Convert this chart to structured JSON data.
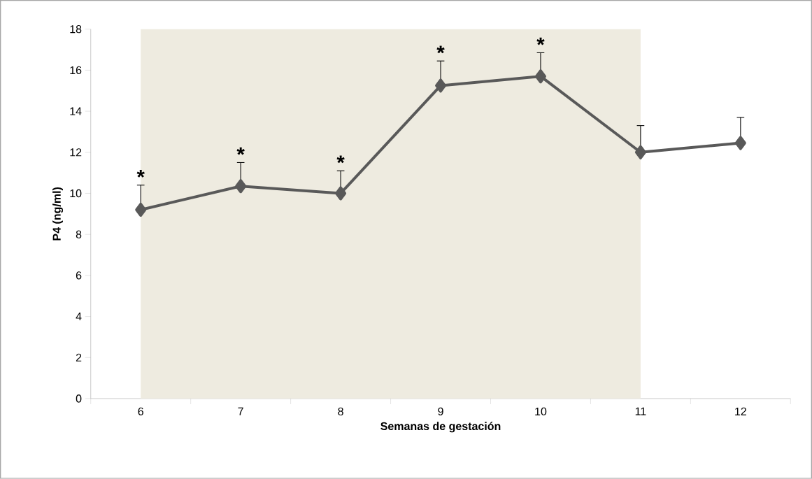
{
  "chart_data": {
    "type": "line",
    "xlabel": "Semanas de gestación",
    "ylabel": "P4 (ng/ml)",
    "categories": [
      "6",
      "7",
      "8",
      "9",
      "10",
      "11",
      "12"
    ],
    "series": [
      {
        "color": "#595959",
        "values": [
          9.2,
          10.35,
          10.0,
          15.25,
          15.7,
          12.0,
          12.45
        ],
        "errors": [
          [
            9.2,
            10.4
          ],
          [
            10.35,
            11.5
          ],
          [
            10.0,
            11.1
          ],
          [
            15.25,
            16.45
          ],
          [
            15.7,
            16.85
          ],
          [
            12.0,
            13.3
          ],
          [
            12.45,
            13.7
          ]
        ]
      }
    ],
    "ylim": [
      0,
      18
    ],
    "yticks": [
      0,
      2,
      4,
      6,
      8,
      10,
      12,
      14,
      16,
      18
    ],
    "bands": [
      {
        "axis": "x",
        "from": "6",
        "to": "11",
        "color": "#eeebe0"
      }
    ],
    "annotations": [
      "*",
      "*",
      "*",
      "*",
      "*"
    ],
    "marker": "diamond",
    "line_style": "solid",
    "grid": false
  }
}
